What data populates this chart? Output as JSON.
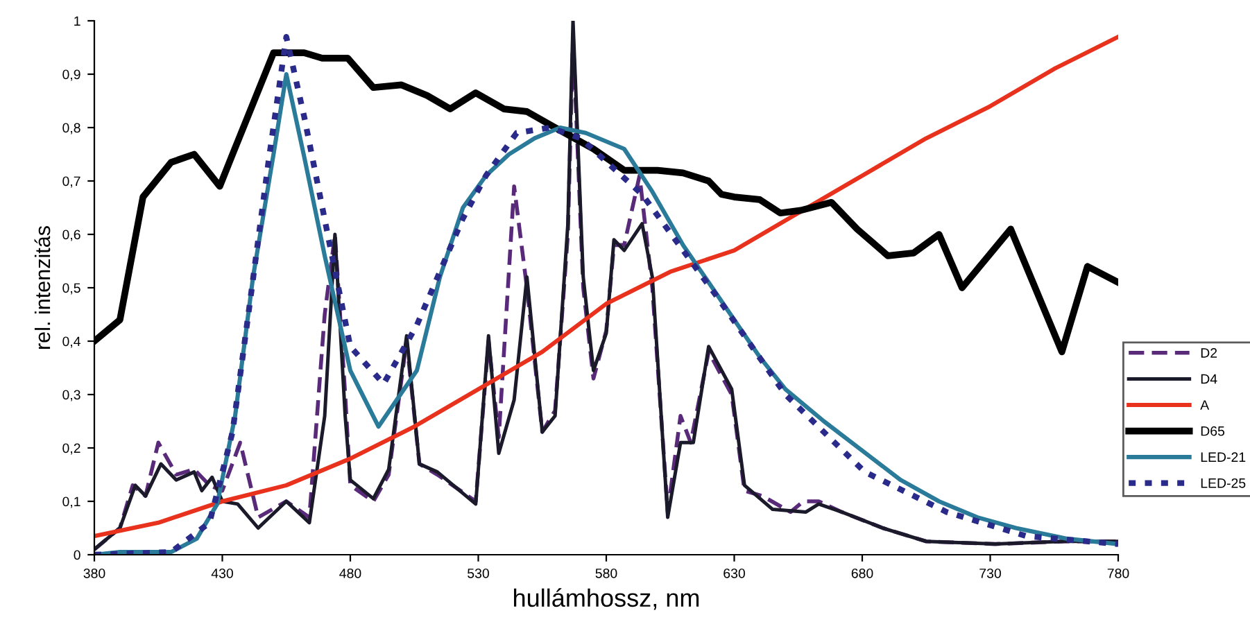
{
  "chart_data": {
    "type": "line",
    "xlabel": "hullámhossz, nm",
    "ylabel": "rel. intenzitás",
    "xlim": [
      380,
      780
    ],
    "ylim": [
      0,
      1
    ],
    "xticks": [
      380,
      430,
      480,
      530,
      580,
      630,
      680,
      730,
      780
    ],
    "yticks": [
      0,
      {
        "value": 0.1,
        "label": "0,1"
      },
      {
        "value": 0.2,
        "label": "0,2"
      },
      {
        "value": 0.3,
        "label": "0,3"
      },
      {
        "value": 0.4,
        "label": "0,4"
      },
      {
        "value": 0.5,
        "label": "0,5"
      },
      {
        "value": 0.6,
        "label": "0,6"
      },
      {
        "value": 0.7,
        "label": "0,7"
      },
      {
        "value": 0.8,
        "label": "0,8"
      },
      {
        "value": 0.9,
        "label": "0,9"
      },
      1
    ],
    "grid": false,
    "legend": "right",
    "marker": "none",
    "series": [
      {
        "name": "D2",
        "color": "#5a2a7a",
        "line_style": "dashed",
        "x": [
          380,
          390,
          395,
          400,
          405,
          412,
          419,
          425,
          430,
          437,
          444,
          455,
          464,
          470,
          474,
          478,
          480,
          489,
          495,
          502,
          507,
          514,
          529,
          534,
          538,
          544,
          549,
          555,
          560,
          565,
          567,
          571,
          575,
          580,
          583,
          587,
          593,
          598,
          604,
          609,
          613,
          620,
          629,
          634,
          641,
          652,
          657,
          663,
          672,
          688,
          705,
          732,
          759,
          780
        ],
        "values": [
          0.01,
          0.05,
          0.13,
          0.11,
          0.21,
          0.15,
          0.16,
          0.13,
          0.12,
          0.21,
          0.07,
          0.1,
          0.07,
          0.45,
          0.6,
          0.3,
          0.13,
          0.1,
          0.15,
          0.4,
          0.17,
          0.15,
          0.1,
          0.4,
          0.22,
          0.69,
          0.5,
          0.23,
          0.27,
          0.6,
          0.97,
          0.5,
          0.33,
          0.42,
          0.58,
          0.58,
          0.71,
          0.5,
          0.08,
          0.26,
          0.21,
          0.38,
          0.3,
          0.12,
          0.11,
          0.08,
          0.1,
          0.1,
          0.08,
          0.05,
          0.025,
          0.02,
          0.025,
          0.025
        ]
      },
      {
        "name": "D4",
        "color": "#1a1a2a",
        "line_style": "solid",
        "x": [
          380,
          390,
          396,
          400,
          406,
          412,
          419,
          422,
          426,
          430,
          436,
          444,
          455,
          464,
          470,
          474,
          478,
          480,
          489,
          495,
          502,
          507,
          514,
          529,
          534,
          538,
          544,
          549,
          555,
          560,
          565,
          567,
          571,
          575,
          580,
          583,
          587,
          594,
          598,
          604,
          609,
          614,
          620,
          629,
          634,
          645,
          658,
          663,
          672,
          688,
          705,
          732,
          759,
          780
        ],
        "values": [
          0.01,
          0.05,
          0.13,
          0.11,
          0.17,
          0.14,
          0.155,
          0.12,
          0.145,
          0.1,
          0.095,
          0.05,
          0.1,
          0.06,
          0.26,
          0.6,
          0.26,
          0.14,
          0.105,
          0.16,
          0.41,
          0.17,
          0.155,
          0.095,
          0.41,
          0.19,
          0.29,
          0.52,
          0.23,
          0.26,
          0.62,
          1.0,
          0.52,
          0.345,
          0.415,
          0.59,
          0.57,
          0.62,
          0.52,
          0.07,
          0.21,
          0.21,
          0.39,
          0.31,
          0.13,
          0.085,
          0.08,
          0.095,
          0.08,
          0.05,
          0.025,
          0.02,
          0.025,
          0.025
        ]
      },
      {
        "name": "A",
        "color": "#e8321e",
        "line_style": "solid",
        "x": [
          380,
          405,
          430,
          455,
          480,
          505,
          530,
          555,
          580,
          605,
          630,
          655,
          680,
          705,
          730,
          755,
          780
        ],
        "values": [
          0.035,
          0.06,
          0.1,
          0.13,
          0.18,
          0.24,
          0.31,
          0.38,
          0.47,
          0.53,
          0.57,
          0.64,
          0.71,
          0.78,
          0.84,
          0.91,
          0.97
        ]
      },
      {
        "name": "D65",
        "color": "#000000",
        "line_style": "solid",
        "x": [
          380,
          390,
          399,
          410,
          419,
          429,
          434,
          450,
          462,
          469,
          479,
          489,
          500,
          510,
          519,
          529,
          540,
          549,
          560,
          575,
          587,
          600,
          610,
          620,
          625,
          630,
          640,
          648,
          656,
          668,
          678,
          690,
          700,
          710,
          719,
          738,
          758,
          768,
          780
        ],
        "values": [
          0.4,
          0.44,
          0.67,
          0.735,
          0.75,
          0.69,
          0.75,
          0.94,
          0.94,
          0.93,
          0.93,
          0.875,
          0.88,
          0.86,
          0.835,
          0.865,
          0.835,
          0.83,
          0.8,
          0.76,
          0.72,
          0.72,
          0.715,
          0.7,
          0.675,
          0.67,
          0.665,
          0.64,
          0.645,
          0.66,
          0.61,
          0.56,
          0.565,
          0.6,
          0.5,
          0.61,
          0.38,
          0.54,
          0.51
        ]
      },
      {
        "name": "LED-21",
        "color": "#2a7a99",
        "line_style": "solid",
        "x": [
          380,
          390,
          410,
          420,
          428,
          435,
          442,
          450,
          455,
          462,
          470,
          480,
          491,
          506,
          515,
          524,
          533,
          542,
          552,
          562,
          572,
          587,
          598,
          610,
          620,
          630,
          640,
          650,
          665,
          680,
          695,
          710,
          725,
          740,
          760,
          780
        ],
        "values": [
          0,
          0.005,
          0.005,
          0.03,
          0.095,
          0.26,
          0.52,
          0.75,
          0.9,
          0.745,
          0.56,
          0.345,
          0.24,
          0.345,
          0.52,
          0.65,
          0.71,
          0.75,
          0.78,
          0.8,
          0.79,
          0.76,
          0.68,
          0.58,
          0.51,
          0.44,
          0.37,
          0.31,
          0.25,
          0.195,
          0.14,
          0.1,
          0.07,
          0.05,
          0.03,
          0.02
        ]
      },
      {
        "name": "LED-25",
        "color": "#2a2a8a",
        "line_style": "dotted",
        "x": [
          380,
          410,
          425,
          434,
          441,
          448,
          455,
          462,
          472,
          480,
          493,
          506,
          524,
          533,
          545,
          558,
          570,
          594,
          623,
          650,
          681,
          713,
          744,
          780
        ],
        "values": [
          0,
          0.005,
          0.06,
          0.23,
          0.48,
          0.735,
          0.97,
          0.82,
          0.58,
          0.39,
          0.32,
          0.43,
          0.63,
          0.71,
          0.79,
          0.8,
          0.78,
          0.675,
          0.485,
          0.3,
          0.155,
          0.08,
          0.035,
          0.02
        ]
      }
    ]
  }
}
